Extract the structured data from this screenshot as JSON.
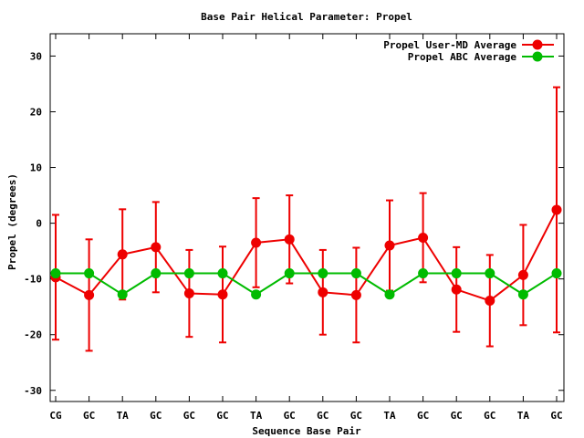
{
  "chart_data": {
    "type": "line",
    "title": "Base Pair Helical Parameter: Propel",
    "xlabel": "Sequence Base Pair",
    "ylabel": "Propel (degrees)",
    "ylim": [
      -32,
      34
    ],
    "yticks": [
      -30,
      -20,
      -10,
      0,
      10,
      20,
      30
    ],
    "categories": [
      "CG",
      "GC",
      "TA",
      "GC",
      "GC",
      "GC",
      "TA",
      "GC",
      "GC",
      "GC",
      "TA",
      "GC",
      "GC",
      "GC",
      "TA",
      "GC"
    ],
    "legend_position": "top-right",
    "grid": false,
    "series": [
      {
        "name": "Propel User-MD Average",
        "color": "#ee0000",
        "values": [
          -9.7,
          -12.9,
          -5.6,
          -4.3,
          -12.6,
          -12.8,
          -3.5,
          -2.9,
          -12.4,
          -12.9,
          -4.0,
          -2.6,
          -11.9,
          -13.9,
          -9.3,
          2.4
        ],
        "error": [
          11.2,
          10.0,
          8.1,
          8.1,
          7.8,
          8.6,
          8.0,
          7.9,
          7.6,
          8.5,
          8.1,
          8.0,
          7.6,
          8.2,
          9.0,
          22.0
        ]
      },
      {
        "name": "Propel ABC Average",
        "color": "#00bb00",
        "values": [
          -9.0,
          -9.0,
          -12.8,
          -9.0,
          -9.0,
          -9.0,
          -12.8,
          -9.0,
          -9.0,
          -9.0,
          -12.8,
          -9.0,
          -9.0,
          -9.0,
          -12.8,
          -9.0
        ]
      }
    ]
  }
}
